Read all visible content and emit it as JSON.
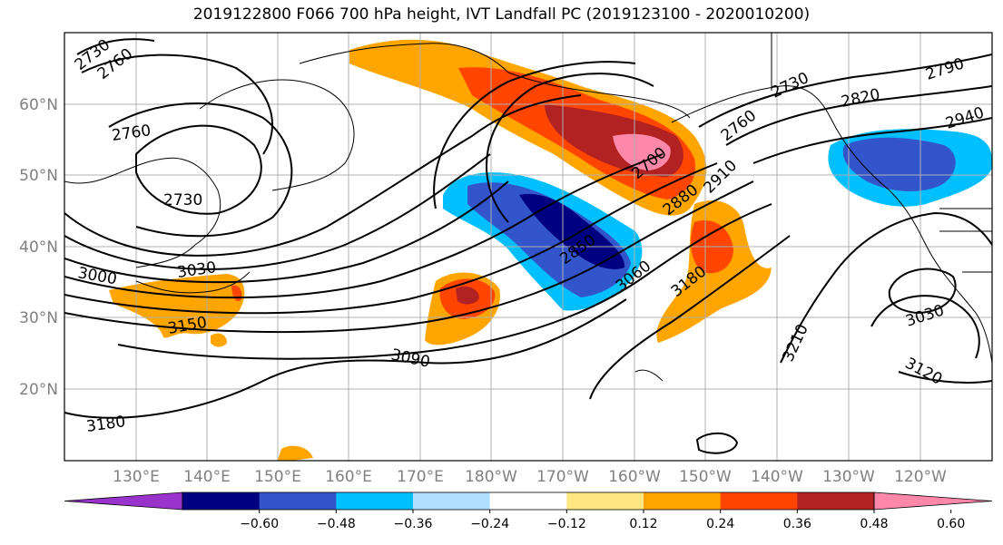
{
  "title": "2019122800 F066 700 hPa height, IVT Landfall PC (2019123100 - 2020010200)",
  "lat_labels": [
    "60°N",
    "50°N",
    "40°N",
    "30°N",
    "20°N"
  ],
  "lon_labels": [
    "130°E",
    "140°E",
    "150°E",
    "160°E",
    "170°E",
    "180°W",
    "170°W",
    "160°W",
    "150°W",
    "140°W",
    "130°W",
    "120°W"
  ],
  "contour_labels": [
    "2730",
    "2760",
    "2760",
    "2730",
    "3000",
    "3030",
    "3150",
    "3180",
    "3090",
    "2850",
    "3060",
    "3180",
    "2700",
    "2880",
    "2910",
    "2760",
    "2730",
    "2820",
    "2790",
    "2940",
    "3210",
    "3030",
    "3120"
  ],
  "colorbar": {
    "ticks": [
      "−0.60",
      "−0.48",
      "−0.36",
      "−0.24",
      "−0.12",
      "0.12",
      "0.24",
      "0.36",
      "0.48",
      "0.60"
    ],
    "colors": [
      "#9933cc",
      "#000080",
      "#3355cc",
      "#00bfff",
      "#b0e0ff",
      "#ffffff",
      "#ffe680",
      "#ffa500",
      "#ff4500",
      "#b22222",
      "#ff88aa"
    ]
  },
  "field_colors": {
    "neg_strong": "#000080",
    "neg_mid": "#3355cc",
    "neg_light": "#00bfff",
    "pos_light": "#ffa500",
    "pos_mid": "#ff4500",
    "pos_strong": "#b22222",
    "pos_max": "#ff88aa"
  }
}
